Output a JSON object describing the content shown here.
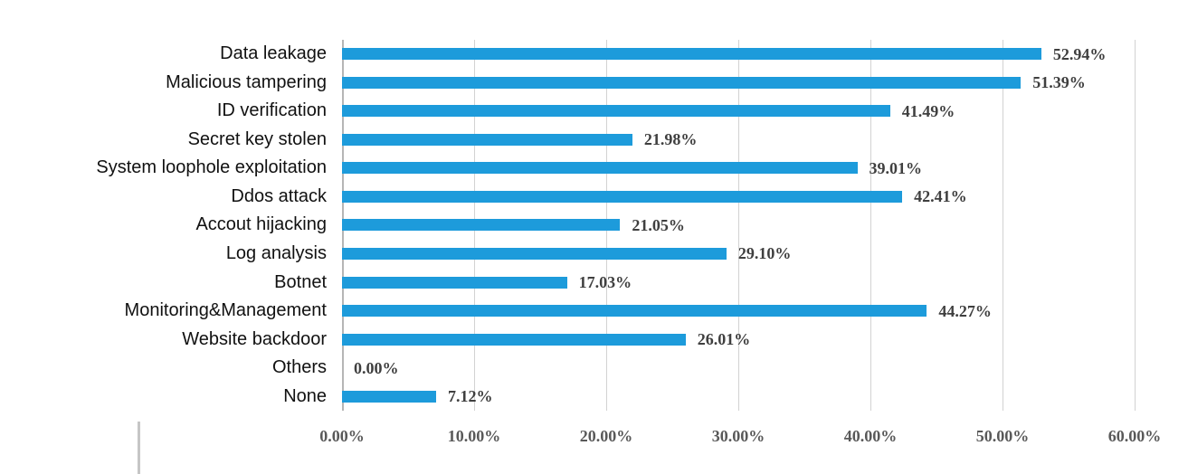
{
  "chart_data": {
    "type": "bar",
    "orientation": "horizontal",
    "title": "",
    "xlabel": "",
    "ylabel": "",
    "categories": [
      "Data leakage",
      "Malicious tampering",
      "ID verification",
      "Secret key stolen",
      "System loophole exploitation",
      "Ddos attack",
      "Accout hijacking",
      "Log analysis",
      "Botnet",
      "Monitoring&Management",
      "Website backdoor",
      "Others",
      "None"
    ],
    "values": [
      52.94,
      51.39,
      41.49,
      21.98,
      39.01,
      42.41,
      21.05,
      29.1,
      17.03,
      44.27,
      26.01,
      0.0,
      7.12
    ],
    "value_labels": [
      "52.94%",
      "51.39%",
      "41.49%",
      "21.98%",
      "39.01%",
      "42.41%",
      "21.05%",
      "29.10%",
      "17.03%",
      "44.27%",
      "26.01%",
      "0.00%",
      "7.12%"
    ],
    "xlim": [
      0,
      60
    ],
    "x_ticks": [
      "0.00%",
      "10.00%",
      "20.00%",
      "30.00%",
      "40.00%",
      "50.00%",
      "60.00%"
    ],
    "grid": true,
    "legend": "none"
  },
  "colors": {
    "bar": "#1d9bdb",
    "grid": "#d2d2d2",
    "zero_axis": "#b5b5b5",
    "value_label": "#3f3f3f",
    "tick_label": "#595959",
    "category_label": "#111111"
  }
}
